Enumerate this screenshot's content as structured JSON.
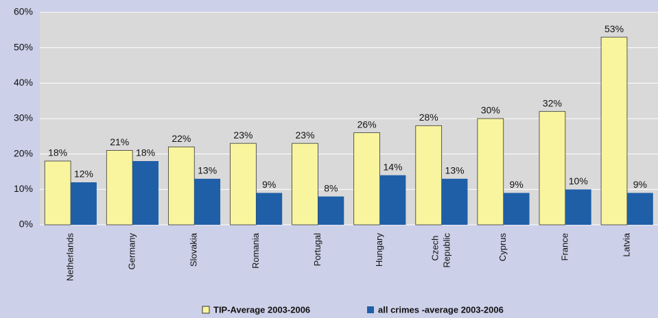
{
  "chart_data": {
    "type": "bar",
    "categories": [
      "Netherlands",
      "Germany",
      "Slovakia",
      "Romania",
      "Portugal",
      "Hungary",
      "Czech Republic",
      "Cyprus",
      "France",
      "Latvia"
    ],
    "series": [
      {
        "name": "TIP-Average 2003-2006",
        "color": "#f8f59e",
        "values": [
          18,
          21,
          22,
          23,
          23,
          26,
          28,
          30,
          32,
          53
        ],
        "value_labels": [
          "18%",
          "21%",
          "22%",
          "23%",
          "23%",
          "26%",
          "28%",
          "30%",
          "32%",
          "53%"
        ]
      },
      {
        "name": "all crimes -average 2003-2006",
        "color": "#1f5fa8",
        "values": [
          12,
          18,
          13,
          9,
          8,
          14,
          13,
          9,
          10,
          9
        ],
        "value_labels": [
          "12%",
          "18%",
          "13%",
          "9%",
          "8%",
          "14%",
          "13%",
          "9%",
          "10%",
          "9%"
        ]
      }
    ],
    "ylim": [
      0,
      60
    ],
    "yticks": [
      {
        "value": 0,
        "label": "0%"
      },
      {
        "value": 10,
        "label": "10%"
      },
      {
        "value": 20,
        "label": "20%"
      },
      {
        "value": 30,
        "label": "30%"
      },
      {
        "value": 40,
        "label": "40%"
      },
      {
        "value": 50,
        "label": "50%"
      },
      {
        "value": 60,
        "label": "60%"
      }
    ],
    "grid": true,
    "legend": "bottom"
  }
}
